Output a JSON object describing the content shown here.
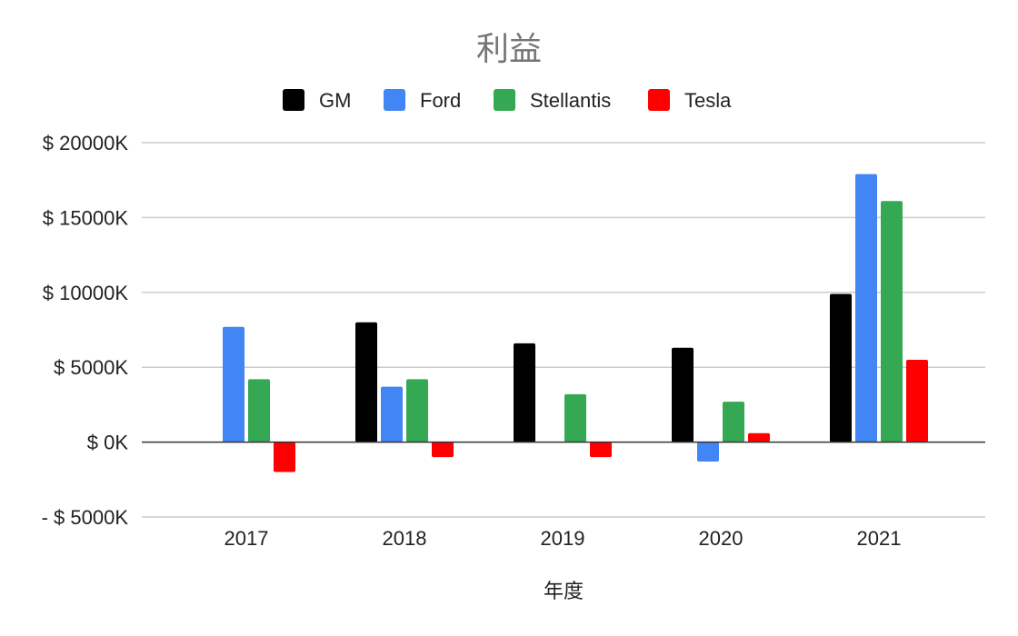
{
  "chart_data": {
    "type": "bar",
    "title": "利益",
    "xlabel": "年度",
    "ylabel": "",
    "categories": [
      "2017",
      "2018",
      "2019",
      "2020",
      "2021"
    ],
    "series": [
      {
        "name": "GM",
        "color": "#000000",
        "values": [
          0,
          8000,
          6600,
          6300,
          9900
        ]
      },
      {
        "name": "Ford",
        "color": "#4285f4",
        "values": [
          7700,
          3700,
          0,
          -1300,
          17900
        ]
      },
      {
        "name": "Stellantis",
        "color": "#34a853",
        "values": [
          4200,
          4200,
          3200,
          2700,
          16100
        ]
      },
      {
        "name": "Tesla",
        "color": "#ff0000",
        "values": [
          -2000,
          -1000,
          -1000,
          600,
          5500
        ]
      }
    ],
    "ylim": [
      -5000,
      20000
    ],
    "yticks": [
      20000,
      15000,
      10000,
      5000,
      0,
      -5000
    ],
    "ytick_labels": [
      "$ 20000K",
      "$ 15000K",
      "$ 10000K",
      "$ 5000K",
      "$ 0K",
      "- $ 5000K"
    ],
    "legend_position": "top-center",
    "grid": true
  }
}
